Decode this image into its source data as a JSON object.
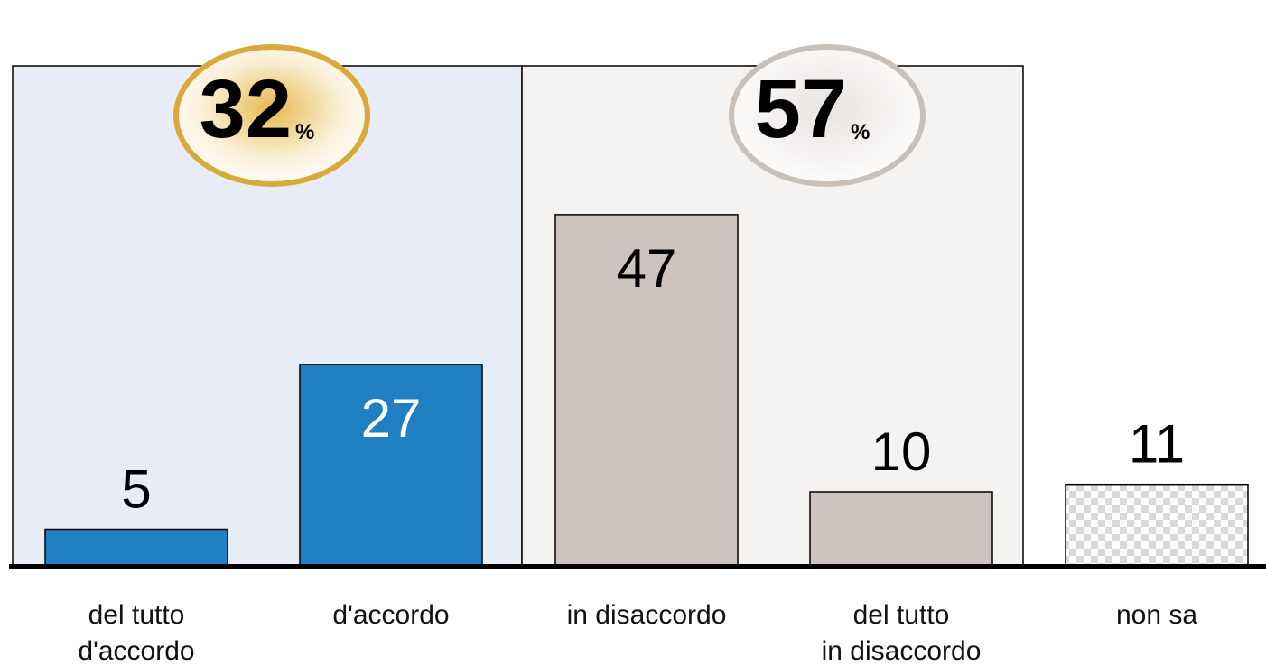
{
  "chart_data": {
    "type": "bar",
    "categories": [
      "del tutto\nd'accordo",
      "d'accordo",
      "in disaccordo",
      "del tutto\nin disaccordo",
      "non sa"
    ],
    "values": [
      5,
      27,
      47,
      10,
      11
    ],
    "colors": [
      "#1f7fc0",
      "#1f7fc0",
      "#cdc4bf",
      "#cdc4bf",
      "checker"
    ],
    "label_colors": [
      "#000000",
      "#ffffff",
      "#000000",
      "#000000",
      "#000000"
    ],
    "totals": {
      "values": [
        32,
        57
      ],
      "unit": "%",
      "panel_colors": [
        "#e8edf5",
        "#f4f3f1"
      ],
      "ring_colors": [
        "#d9a93a",
        "#c9c0ba"
      ]
    }
  }
}
